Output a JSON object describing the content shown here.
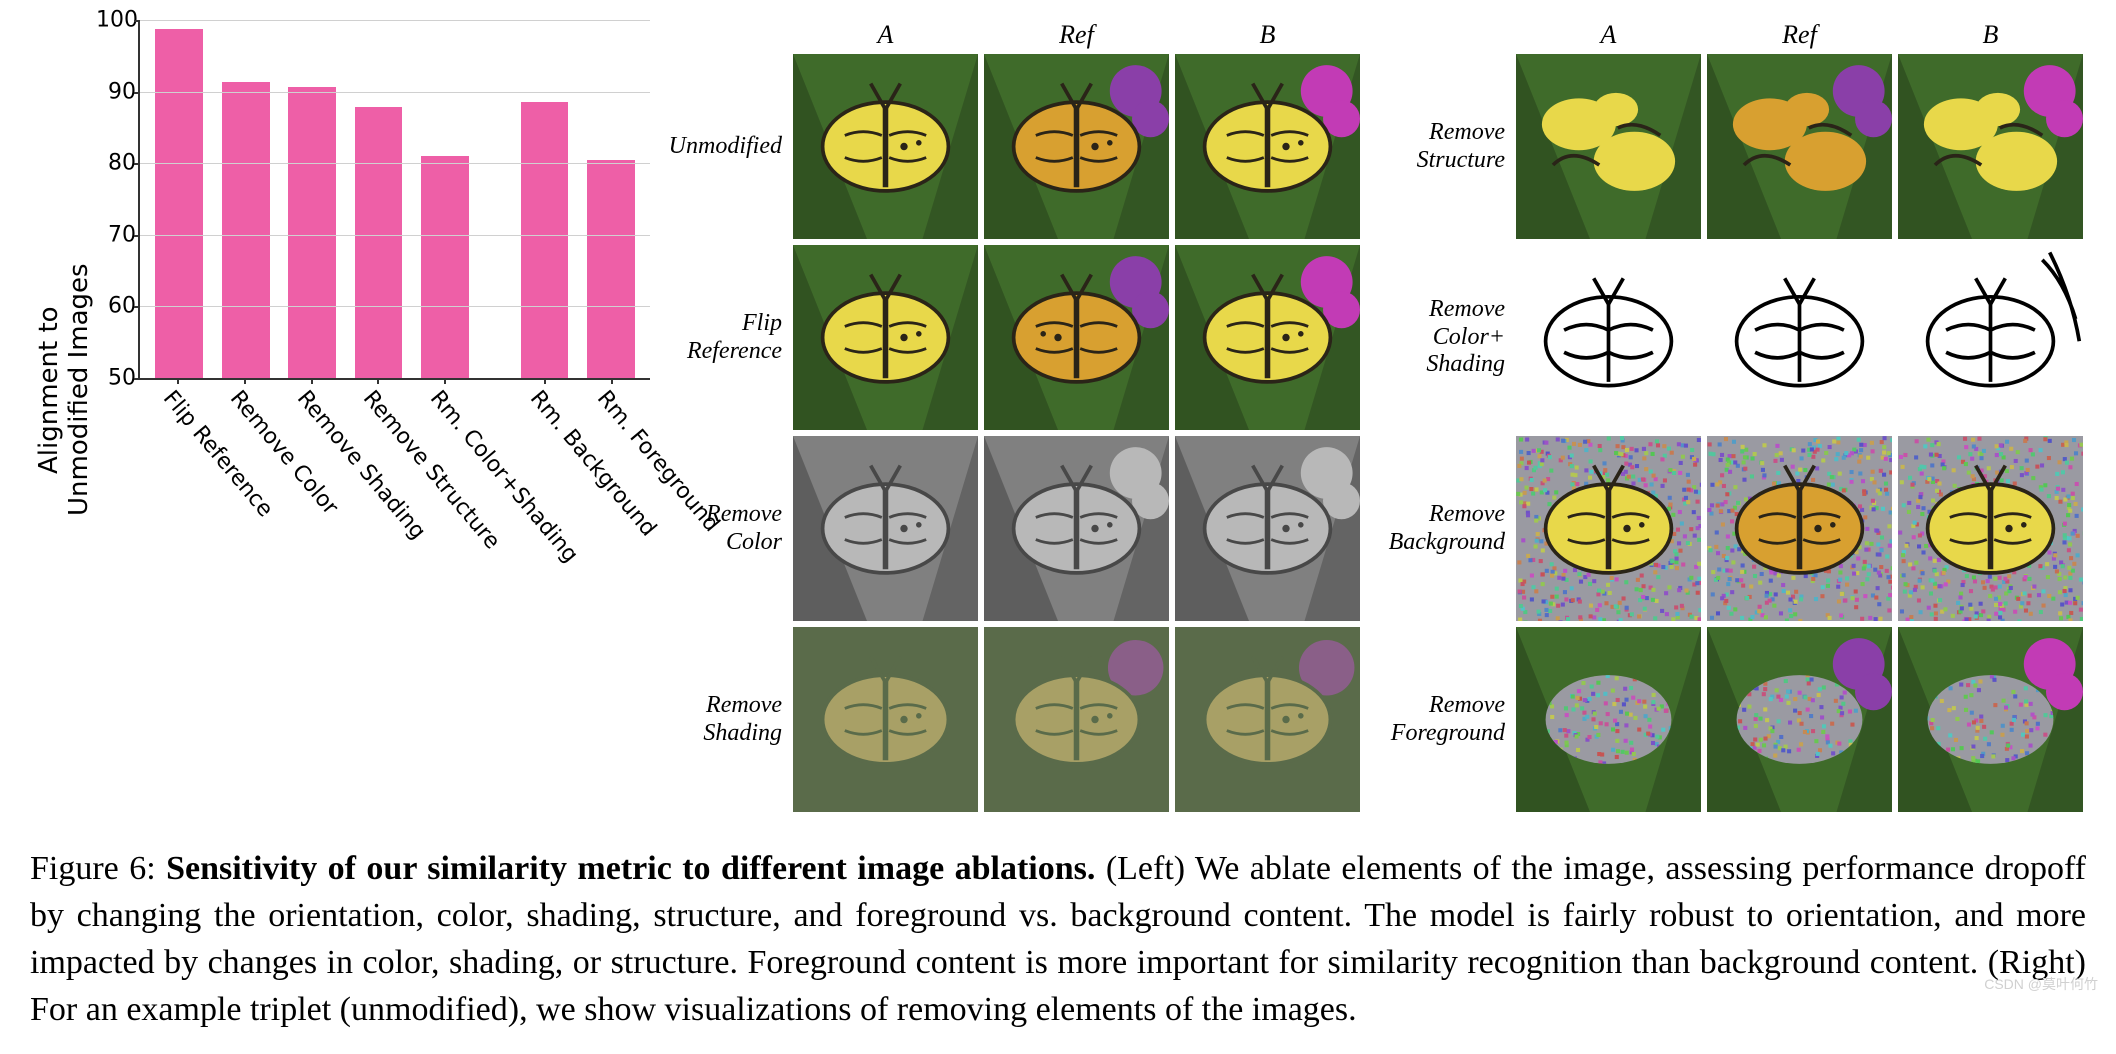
{
  "chart": {
    "type": "bar",
    "ylabel": "Alignment to\nUnmodified Images",
    "ylim": [
      50,
      100
    ],
    "yticks": [
      50,
      60,
      70,
      80,
      90,
      100
    ],
    "categories": [
      "Flip Reference",
      "Remove Color",
      "Remove Shading",
      "Remove Structure",
      "Rm. Color+Shading",
      "Rm. Background",
      "Rm. Foreground"
    ],
    "values": [
      98.8,
      91.4,
      90.6,
      87.9,
      81.0,
      88.6,
      80.4
    ],
    "gap_after_index": 4,
    "bar_color": "#ee5fa7",
    "bar_width": 0.72,
    "grid_color": "#d0d0d0",
    "axis_color": "#333333",
    "tick_fontsize": 22,
    "label_fontsize": 26,
    "xlabel_rotation_deg": 50,
    "background_color": "#ffffff"
  },
  "grids": {
    "column_headers": [
      "A",
      "Ref",
      "B"
    ],
    "left_rows": [
      "Unmodified",
      "Flip\nReference",
      "Remove\nColor",
      "Remove\nShading"
    ],
    "right_rows": [
      "Remove\nStructure",
      "Remove\nColor+\nShading",
      "Remove\nBackground",
      "Remove\nForeground"
    ],
    "tile_colors": {
      "foliage_green": "#3f6b2a",
      "foliage_dark": "#28421c",
      "magenta_flower": "#c23bb5",
      "purple_flower": "#8a3fa8",
      "butterfly_yellow": "#e8d84a",
      "butterfly_orange": "#d8a030",
      "butterfly_dark": "#2a2418",
      "line_black": "#000000",
      "paper_white": "#ffffff",
      "gray_mid": "#808080",
      "gray_light": "#b8b8b8",
      "gray_dark": "#484848",
      "desat_green": "#5a6b4a",
      "desat_yellow": "#a8a066",
      "desat_magenta": "#8a5f88",
      "noise_bg": "#9a9aa2"
    }
  },
  "caption": {
    "figure_label": "Figure 6:",
    "title_bold": "Sensitivity of our similarity metric to different image ablations.",
    "body": "(Left) We ablate elements of the image, assessing performance dropoff by changing the orientation, color, shading, structure, and foreground vs. background content. The model is fairly robust to orientation, and more impacted by changes in color, shading, or structure. Foreground content is more important for similarity recognition than background content. (Right) For an example triplet (unmodified), we show visualizations of removing elements of the images."
  },
  "watermark": "CSDN @莫叶何竹"
}
